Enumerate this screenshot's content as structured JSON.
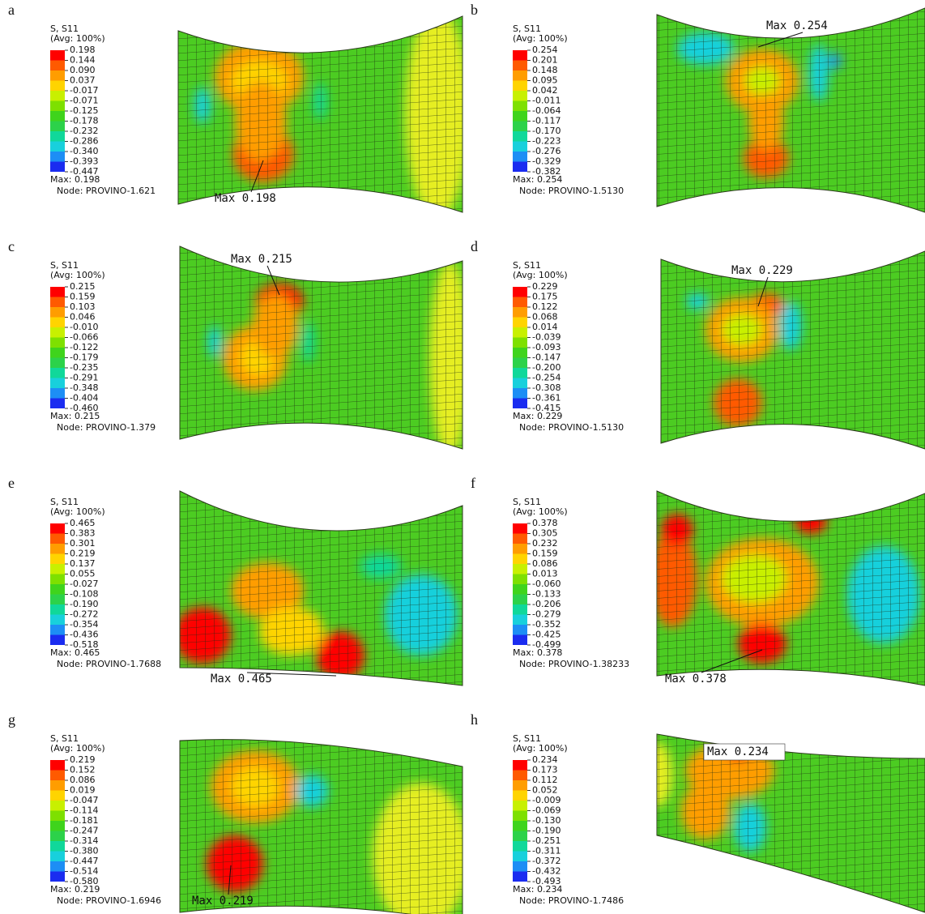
{
  "panels": [
    {
      "letter": "a",
      "legend_title": "S, S11",
      "legend_subtitle": "(Avg: 100%)",
      "legend_values": [
        "0.198",
        "0.144",
        "0.090",
        "0.037",
        "-0.017",
        "-0.071",
        "-0.125",
        "-0.178",
        "-0.232",
        "-0.286",
        "-0.340",
        "-0.393",
        "-0.447"
      ],
      "max": "Max: 0.198",
      "node": "Node: PROVINO-1.621",
      "annotation": "Max 0.198"
    },
    {
      "letter": "b",
      "legend_title": "S, S11",
      "legend_subtitle": "(Avg: 100%)",
      "legend_values": [
        "0.254",
        "0.201",
        "0.148",
        "0.095",
        "0.042",
        "-0.011",
        "-0.064",
        "-0.117",
        "-0.170",
        "-0.223",
        "-0.276",
        "-0.329",
        "-0.382"
      ],
      "max": "Max: 0.254",
      "node": "Node: PROVINO-1.5130",
      "annotation": "Max 0.254"
    },
    {
      "letter": "c",
      "legend_title": "S, S11",
      "legend_subtitle": "(Avg: 100%)",
      "legend_values": [
        "0.215",
        "0.159",
        "0.103",
        "0.046",
        "-0.010",
        "-0.066",
        "-0.122",
        "-0.179",
        "-0.235",
        "-0.291",
        "-0.348",
        "-0.404",
        "-0.460"
      ],
      "max": "Max: 0.215",
      "node": "Node: PROVINO-1.379",
      "annotation": "Max 0.215"
    },
    {
      "letter": "d",
      "legend_title": "S, S11",
      "legend_subtitle": "(Avg: 100%)",
      "legend_values": [
        "0.229",
        "0.175",
        "0.122",
        "0.068",
        "0.014",
        "-0.039",
        "-0.093",
        "-0.147",
        "-0.200",
        "-0.254",
        "-0.308",
        "-0.361",
        "-0.415"
      ],
      "max": "Max: 0.229",
      "node": "Node: PROVINO-1.5130",
      "annotation": "Max 0.229"
    },
    {
      "letter": "e",
      "legend_title": "S, S11",
      "legend_subtitle": "(Avg: 100%)",
      "legend_values": [
        "0.465",
        "0.383",
        "0.301",
        "0.219",
        "0.137",
        "0.055",
        "-0.027",
        "-0.108",
        "-0.190",
        "-0.272",
        "-0.354",
        "-0.436",
        "-0.518"
      ],
      "max": "Max: 0.465",
      "node": "Node: PROVINO-1.7688",
      "annotation": "Max 0.465"
    },
    {
      "letter": "f",
      "legend_title": "S, S11",
      "legend_subtitle": "(Avg: 100%)",
      "legend_values": [
        "0.378",
        "0.305",
        "0.232",
        "0.159",
        "0.086",
        "0.013",
        "-0.060",
        "-0.133",
        "-0.206",
        "-0.279",
        "-0.352",
        "-0.425",
        "-0.499"
      ],
      "max": "Max: 0.378",
      "node": "Node: PROVINO-1.38233",
      "annotation": "Max 0.378"
    },
    {
      "letter": "g",
      "legend_title": "S, S11",
      "legend_subtitle": "(Avg: 100%)",
      "legend_values": [
        "0.219",
        "0.152",
        "0.086",
        "0.019",
        "-0.047",
        "-0.114",
        "-0.181",
        "-0.247",
        "-0.314",
        "-0.380",
        "-0.447",
        "-0.514",
        "-0.580"
      ],
      "max": "Max: 0.219",
      "node": "Node: PROVINO-1.6946",
      "annotation": "Max 0.219"
    },
    {
      "letter": "h",
      "legend_title": "S, S11",
      "legend_subtitle": "(Avg: 100%)",
      "legend_values": [
        "0.234",
        "0.173",
        "0.112",
        "0.052",
        "-0.009",
        "-0.069",
        "-0.130",
        "-0.190",
        "-0.251",
        "-0.311",
        "-0.372",
        "-0.432",
        "-0.493"
      ],
      "max": "Max: 0.234",
      "node": "Node: PROVINO-1.7486",
      "annotation": "Max 0.234"
    }
  ]
}
